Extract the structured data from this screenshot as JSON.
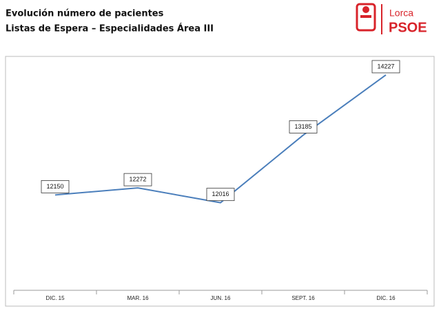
{
  "chart_data": {
    "type": "line",
    "title": "Evolución número de pacientes",
    "subtitle": "Listas de Espera – Especialidades Área III",
    "logo": {
      "city": "Lorca",
      "party": "PSOE"
    },
    "categories": [
      "DIC. 15",
      "MAR. 16",
      "JUN. 16",
      "SEPT. 16",
      "DIC. 16"
    ],
    "series": [
      {
        "color": "#4a7ebb",
        "values": [
          12150,
          12272,
          12016,
          13185,
          14227
        ]
      }
    ],
    "ylim": [
      10500,
      14500
    ]
  }
}
